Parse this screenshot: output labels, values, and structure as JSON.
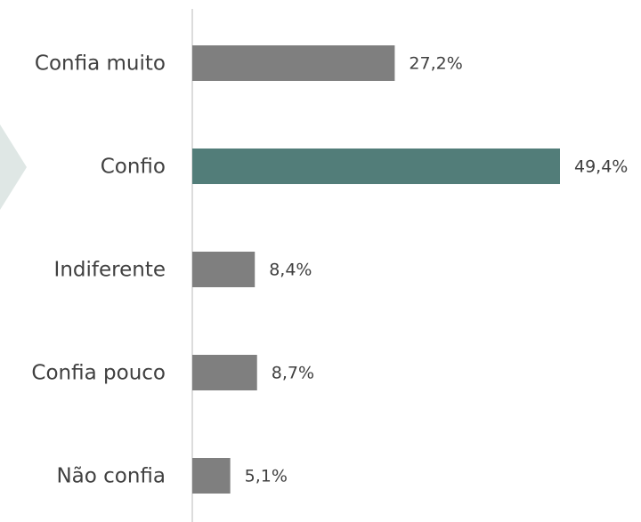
{
  "chart_data": {
    "type": "barh",
    "categories": [
      "Confia muito",
      "Confio",
      "Indiferente",
      "Confia pouco",
      "Não confia"
    ],
    "values": [
      27.2,
      49.4,
      8.4,
      8.7,
      5.1
    ],
    "value_labels": [
      "27,2%",
      "49,4%",
      "8,4%",
      "8,7%",
      "5,1%"
    ],
    "colors": [
      "#7f7f7f",
      "#527d79",
      "#7f7f7f",
      "#7f7f7f",
      "#7f7f7f"
    ]
  }
}
